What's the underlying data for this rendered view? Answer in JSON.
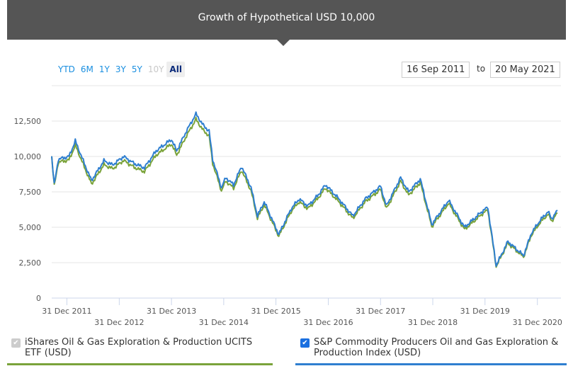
{
  "header": {
    "title": "Growth of Hypothetical USD 10,000"
  },
  "ranges": [
    {
      "label": "YTD",
      "state": "enabled"
    },
    {
      "label": "6M",
      "state": "enabled"
    },
    {
      "label": "1Y",
      "state": "enabled"
    },
    {
      "label": "3Y",
      "state": "enabled"
    },
    {
      "label": "5Y",
      "state": "enabled"
    },
    {
      "label": "10Y",
      "state": "disabled"
    },
    {
      "label": "All",
      "state": "active"
    }
  ],
  "date_from": "16 Sep 2011",
  "date_to_label": "to",
  "date_to": "20 May 2021",
  "legend": [
    {
      "label": "iShares Oil & Gas Exploration & Production UCITS ETF (USD)",
      "checked": true,
      "disabled": true,
      "color": "#7aa33a"
    },
    {
      "label": "S&P Commodity Producers Oil and Gas Exploration & Production Index (USD)",
      "checked": true,
      "disabled": false,
      "color": "#2f7fd0"
    }
  ],
  "chart_data": {
    "type": "line",
    "title": "Growth of Hypothetical USD 10,000",
    "xlim": [
      "2011-09-16",
      "2021-05-20"
    ],
    "ylim": [
      0,
      15000
    ],
    "grid": true,
    "y_ticks": [
      {
        "v": 0,
        "label": "0"
      },
      {
        "v": 2500,
        "label": "2,500"
      },
      {
        "v": 5000,
        "label": "5,000"
      },
      {
        "v": 7500,
        "label": "7,500"
      },
      {
        "v": 10000,
        "label": "10,000"
      },
      {
        "v": 12500,
        "label": "12,500"
      },
      {
        "v": 15000,
        "label": ""
      }
    ],
    "x_ticks": [
      {
        "d": "2011-12-31",
        "label": "31 Dec 2011"
      },
      {
        "d": "2012-12-31",
        "label": "31 Dec 2012"
      },
      {
        "d": "2013-12-31",
        "label": "31 Dec 2013"
      },
      {
        "d": "2014-12-31",
        "label": "31 Dec 2014"
      },
      {
        "d": "2015-12-31",
        "label": "31 Dec 2015"
      },
      {
        "d": "2016-12-31",
        "label": "31 Dec 2016"
      },
      {
        "d": "2017-12-31",
        "label": "31 Dec 2017"
      },
      {
        "d": "2018-12-31",
        "label": "31 Dec 2018"
      },
      {
        "d": "2019-12-31",
        "label": "31 Dec 2019"
      },
      {
        "d": "2020-12-31",
        "label": "31 Dec 2020"
      }
    ],
    "x": [
      "2011-09-16",
      "2011-10-04",
      "2011-11-01",
      "2012-01-15",
      "2012-02-28",
      "2012-05-01",
      "2012-06-20",
      "2012-09-15",
      "2012-11-15",
      "2013-01-30",
      "2013-04-15",
      "2013-06-25",
      "2013-09-15",
      "2013-12-31",
      "2014-02-05",
      "2014-04-15",
      "2014-06-20",
      "2014-08-10",
      "2014-09-20",
      "2014-10-15",
      "2014-12-15",
      "2015-01-15",
      "2015-03-10",
      "2015-05-05",
      "2015-07-10",
      "2015-08-24",
      "2015-10-10",
      "2015-12-15",
      "2016-01-20",
      "2016-04-15",
      "2016-06-10",
      "2016-08-10",
      "2016-10-15",
      "2016-12-12",
      "2017-03-15",
      "2017-06-20",
      "2017-09-15",
      "2017-12-31",
      "2018-02-10",
      "2018-05-20",
      "2018-07-15",
      "2018-10-05",
      "2018-12-24",
      "2019-04-20",
      "2019-08-10",
      "2019-12-20",
      "2020-01-20",
      "2020-03-18",
      "2020-06-08",
      "2020-09-25",
      "2020-11-20",
      "2021-01-20",
      "2021-03-15",
      "2021-04-10",
      "2021-05-20"
    ],
    "series": [
      {
        "name": "iShares Oil & Gas Exploration & Production UCITS ETF (USD)",
        "color": "#7aa33a",
        "values": [
          10000,
          7900,
          9600,
          9750,
          10800,
          9250,
          8050,
          9420,
          9130,
          9720,
          9230,
          8930,
          10100,
          10880,
          10100,
          11460,
          12620,
          11840,
          11460,
          9520,
          7580,
          8260,
          7770,
          9030,
          7580,
          5630,
          6600,
          5150,
          4370,
          6120,
          6800,
          6310,
          6990,
          7770,
          6800,
          5630,
          6800,
          7670,
          6310,
          8260,
          7280,
          8160,
          5050,
          6700,
          4850,
          6020,
          6210,
          2230,
          3880,
          2910,
          4470,
          5340,
          5920,
          5440,
          6020
        ]
      },
      {
        "name": "S&P Commodity Producers Oil and Gas Exploration & Production Index (USD)",
        "color": "#2f7fd0",
        "values": [
          10000,
          8000,
          9800,
          10000,
          11100,
          9500,
          8300,
          9700,
          9400,
          10000,
          9500,
          9200,
          10400,
          11200,
          10400,
          11800,
          13000,
          12200,
          11800,
          9800,
          7800,
          8500,
          8000,
          9300,
          7800,
          5800,
          6800,
          5300,
          4500,
          6300,
          7000,
          6500,
          7200,
          8000,
          7000,
          5800,
          7000,
          7900,
          6500,
          8500,
          7500,
          8400,
          5200,
          6900,
          5000,
          6200,
          6400,
          2300,
          4000,
          3000,
          4600,
          5500,
          6100,
          5600,
          6200
        ]
      }
    ]
  }
}
